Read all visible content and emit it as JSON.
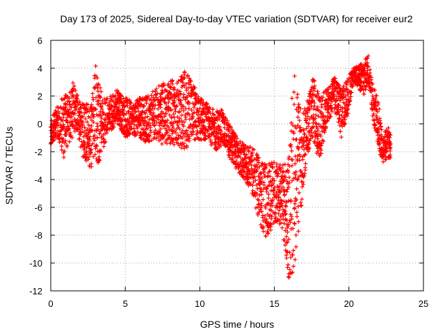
{
  "chart_data": {
    "type": "scatter",
    "title": "Day 173 of 2025, Sidereal Day-to-day VTEC variation (SDTVAR) for receiver eur2",
    "xlabel": "GPS time / hours",
    "ylabel": "SDTVAR / TECUs",
    "xlim": [
      0,
      25
    ],
    "ylim": [
      -12,
      6
    ],
    "xticks": [
      0,
      5,
      10,
      15,
      20,
      25
    ],
    "yticks": [
      -12,
      -10,
      -8,
      -6,
      -4,
      -2,
      0,
      2,
      4,
      6
    ],
    "grid": true,
    "marker": "+",
    "color": "#ff0000",
    "series": [
      {
        "name": "SDTVAR",
        "envelope": [
          {
            "x": 0.0,
            "low": -2.0,
            "high": 0.5
          },
          {
            "x": 0.3,
            "low": -1.0,
            "high": 1.0
          },
          {
            "x": 0.6,
            "low": -1.5,
            "high": 1.5
          },
          {
            "x": 0.9,
            "low": -2.5,
            "high": 2.3
          },
          {
            "x": 1.2,
            "low": -1.5,
            "high": 2.0
          },
          {
            "x": 1.5,
            "low": -1.0,
            "high": 3.0
          },
          {
            "x": 1.8,
            "low": -0.5,
            "high": 2.0
          },
          {
            "x": 2.1,
            "low": -2.5,
            "high": 1.5
          },
          {
            "x": 2.4,
            "low": -2.8,
            "high": 1.5
          },
          {
            "x": 2.7,
            "low": -3.2,
            "high": 1.2
          },
          {
            "x": 3.0,
            "low": -2.5,
            "high": 4.6
          },
          {
            "x": 3.3,
            "low": -3.0,
            "high": 3.0
          },
          {
            "x": 3.6,
            "low": -1.5,
            "high": 2.0
          },
          {
            "x": 4.0,
            "low": -0.5,
            "high": 2.0
          },
          {
            "x": 4.5,
            "low": 0.0,
            "high": 2.5
          },
          {
            "x": 5.0,
            "low": -1.0,
            "high": 2.0
          },
          {
            "x": 5.5,
            "low": -0.8,
            "high": 1.5
          },
          {
            "x": 6.0,
            "low": -1.0,
            "high": 2.0
          },
          {
            "x": 6.5,
            "low": -1.5,
            "high": 2.0
          },
          {
            "x": 7.0,
            "low": -1.0,
            "high": 2.5
          },
          {
            "x": 7.5,
            "low": -1.5,
            "high": 3.0
          },
          {
            "x": 8.0,
            "low": -1.5,
            "high": 3.2
          },
          {
            "x": 8.5,
            "low": -1.5,
            "high": 3.0
          },
          {
            "x": 9.0,
            "low": -2.0,
            "high": 4.0
          },
          {
            "x": 9.5,
            "low": -1.0,
            "high": 3.0
          },
          {
            "x": 10.0,
            "low": -1.5,
            "high": 2.0
          },
          {
            "x": 10.5,
            "low": -1.0,
            "high": 1.5
          },
          {
            "x": 11.0,
            "low": -2.0,
            "high": 1.0
          },
          {
            "x": 11.5,
            "low": -1.5,
            "high": 1.0
          },
          {
            "x": 12.0,
            "low": -2.5,
            "high": 0.0
          },
          {
            "x": 12.5,
            "low": -3.5,
            "high": -1.0
          },
          {
            "x": 13.0,
            "low": -4.0,
            "high": -1.5
          },
          {
            "x": 13.5,
            "low": -5.0,
            "high": -1.5
          },
          {
            "x": 14.0,
            "low": -7.0,
            "high": -2.5
          },
          {
            "x": 14.5,
            "low": -8.5,
            "high": -3.0
          },
          {
            "x": 15.0,
            "low": -7.0,
            "high": -2.5
          },
          {
            "x": 15.5,
            "low": -7.5,
            "high": -3.0
          },
          {
            "x": 16.0,
            "low": -11.5,
            "high": -2.0
          },
          {
            "x": 16.3,
            "low": -10.5,
            "high": 4.2
          },
          {
            "x": 16.7,
            "low": -7.0,
            "high": 1.5
          },
          {
            "x": 17.0,
            "low": -4.0,
            "high": 1.0
          },
          {
            "x": 17.3,
            "low": -2.0,
            "high": 2.0
          },
          {
            "x": 17.6,
            "low": -1.0,
            "high": 3.5
          },
          {
            "x": 18.0,
            "low": -3.0,
            "high": 2.0
          },
          {
            "x": 18.5,
            "low": 0.0,
            "high": 2.5
          },
          {
            "x": 19.0,
            "low": 1.0,
            "high": 3.5
          },
          {
            "x": 19.5,
            "low": -1.0,
            "high": 2.5
          },
          {
            "x": 20.0,
            "low": 1.0,
            "high": 3.5
          },
          {
            "x": 20.3,
            "low": 3.0,
            "high": 4.0
          },
          {
            "x": 21.0,
            "low": 2.0,
            "high": 4.5
          },
          {
            "x": 21.3,
            "low": 3.0,
            "high": 5.0
          },
          {
            "x": 21.6,
            "low": 0.5,
            "high": 3.0
          },
          {
            "x": 22.0,
            "low": -2.0,
            "high": 1.5
          },
          {
            "x": 22.3,
            "low": -2.8,
            "high": -1.0
          },
          {
            "x": 22.6,
            "low": -2.5,
            "high": 0.0
          },
          {
            "x": 22.8,
            "low": -2.5,
            "high": -0.5
          }
        ]
      }
    ]
  }
}
